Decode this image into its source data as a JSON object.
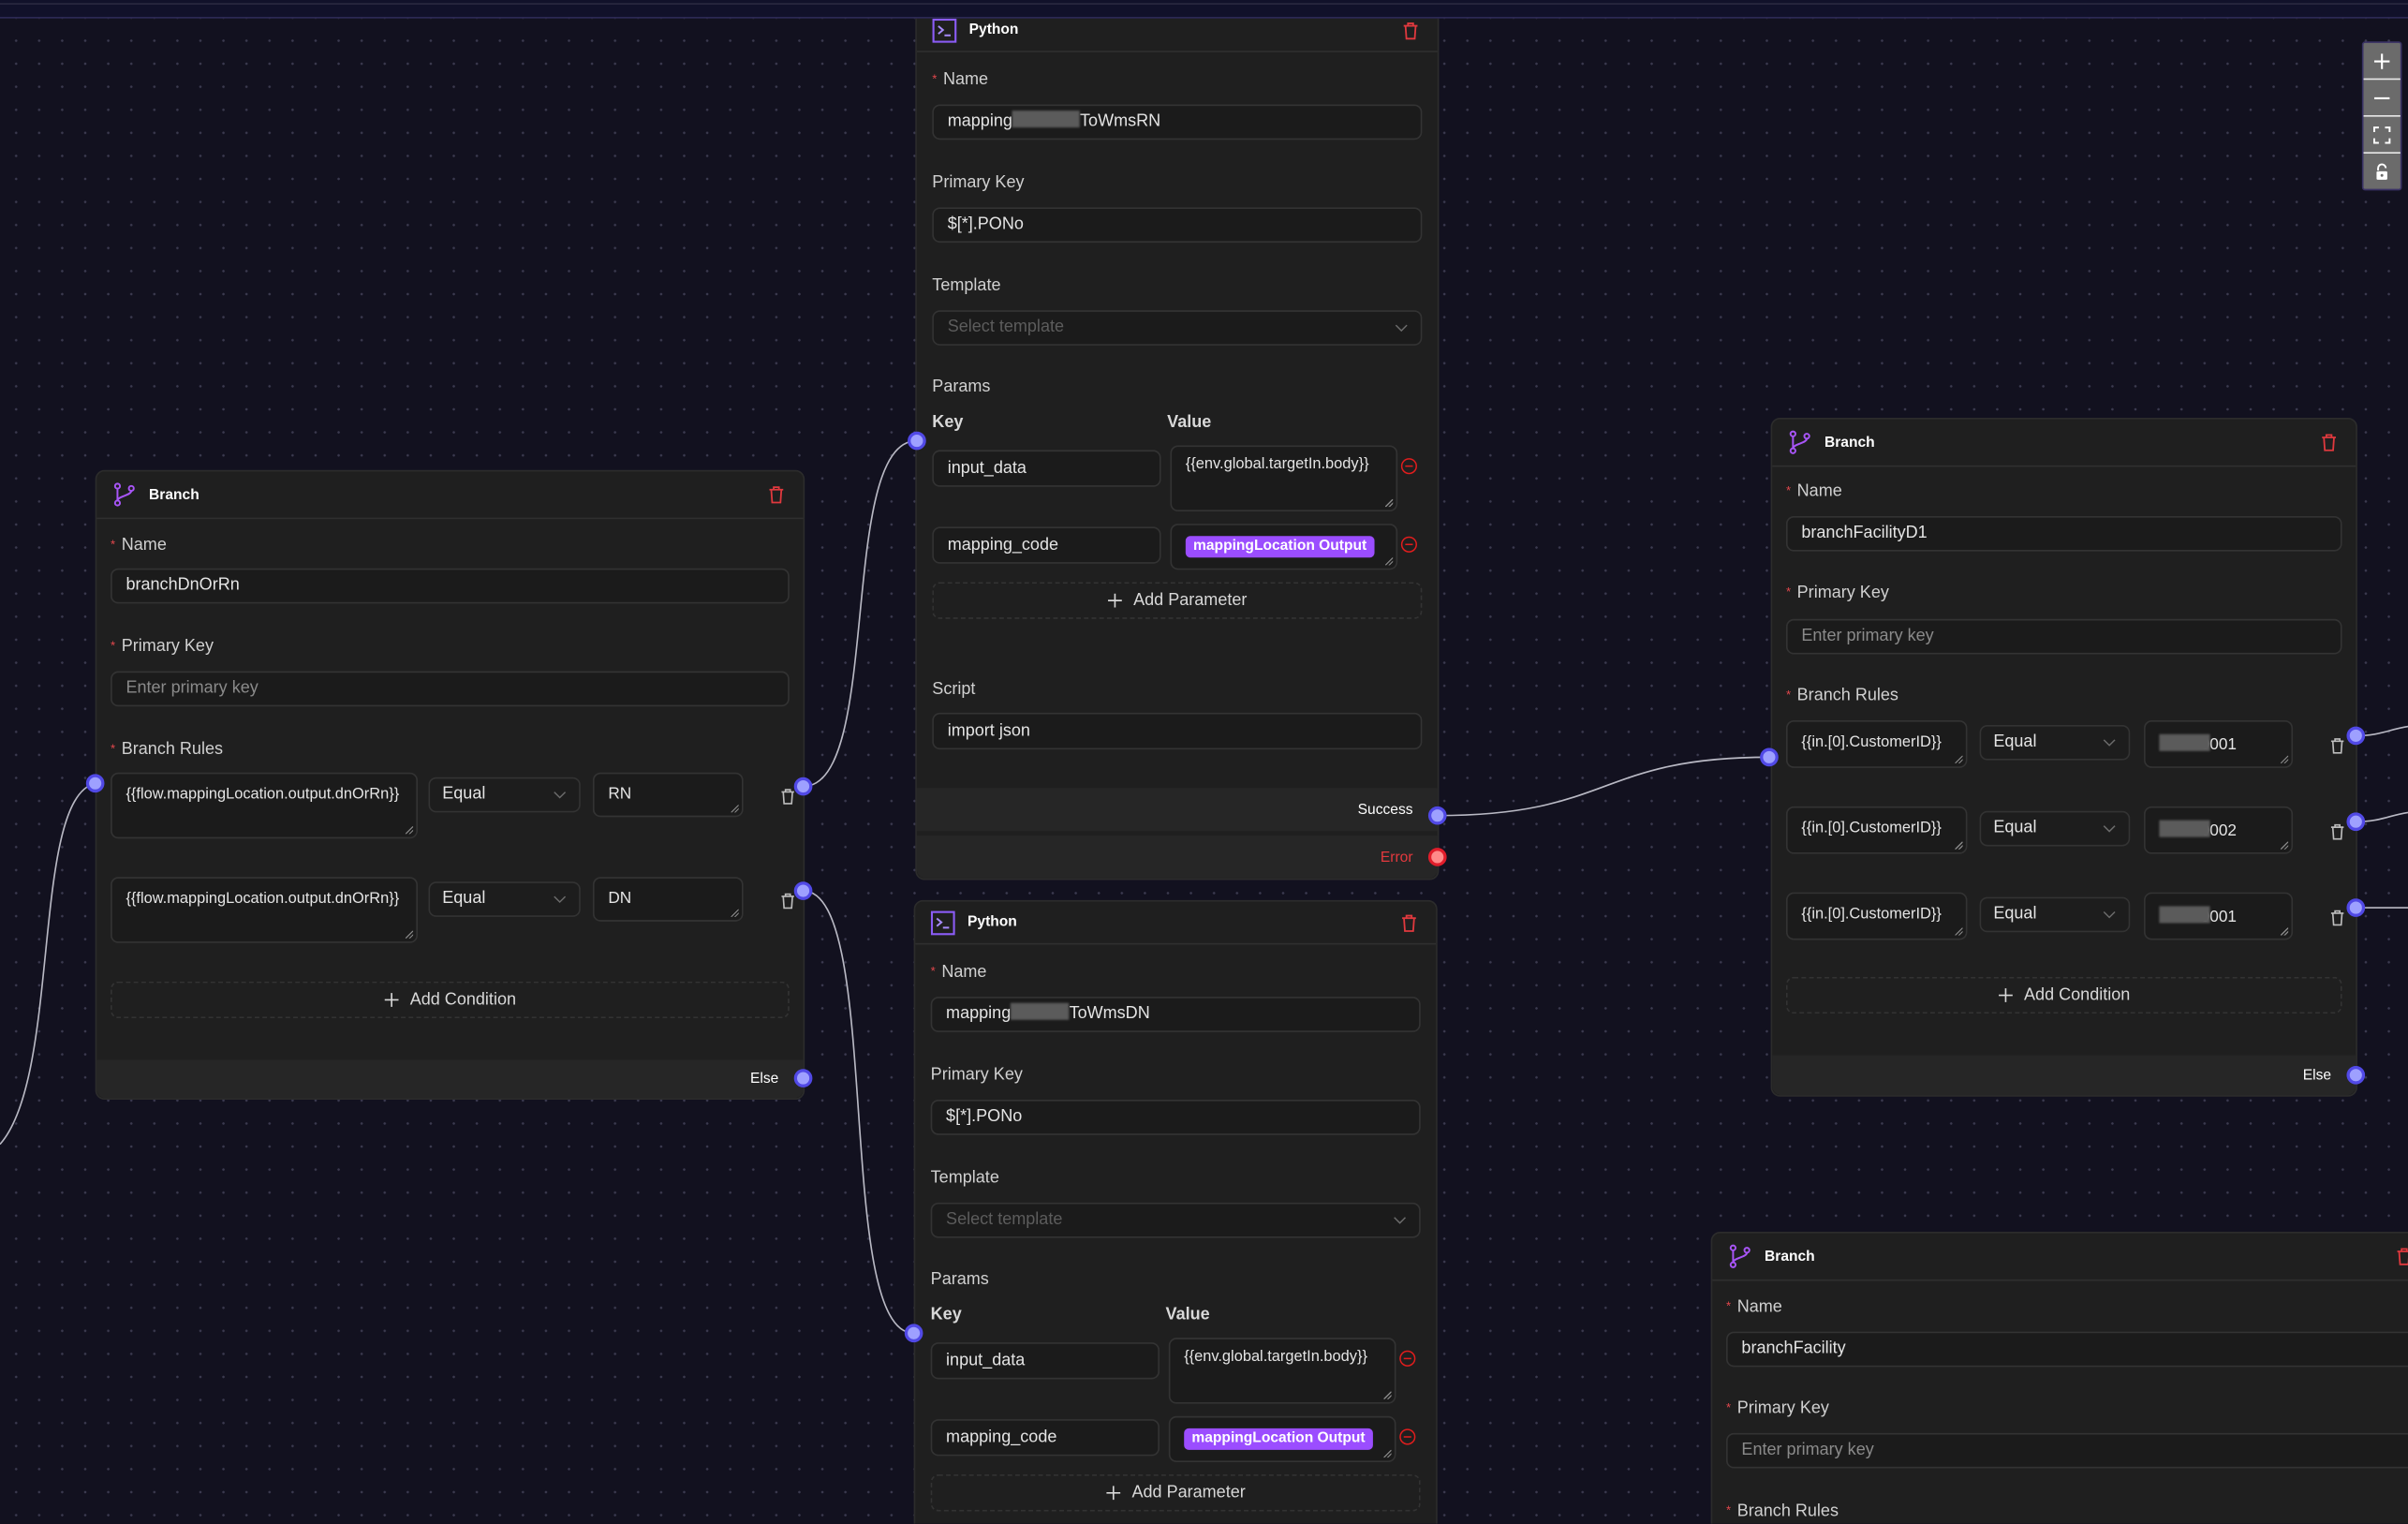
{
  "canvas": {
    "zoom_controls": [
      {
        "action": "zoom-in",
        "icon": "plus-icon"
      },
      {
        "action": "zoom-out",
        "icon": "minus-icon"
      },
      {
        "action": "fit-view",
        "icon": "fit-view-icon"
      },
      {
        "action": "toggle-lock",
        "icon": "unlock-icon"
      }
    ],
    "colors": {
      "background": "#12111f",
      "handle": "#9ea0ff",
      "handle_error": "#ff8a8a",
      "accent": "#9b4dff",
      "danger": "#e5393e"
    }
  },
  "nodes": {
    "python1": {
      "type": "Python",
      "name_label": "Name",
      "name_prefix": "mapping",
      "name_suffix": "ToWmsRN",
      "pk_label": "Primary Key",
      "pk_value": "$[*].PONo",
      "template_label": "Template",
      "template_placeholder": "Select template",
      "params_label": "Params",
      "key_header": "Key",
      "value_header": "Value",
      "params": [
        {
          "key": "input_data",
          "value": "{{env.global.targetIn.body}}"
        },
        {
          "key": "mapping_code",
          "badge": "mappingLocation Output"
        }
      ],
      "add_param": "Add Parameter",
      "script_label": "Script",
      "script_value": "import json",
      "outputs": {
        "success": "Success",
        "error": "Error"
      }
    },
    "python2": {
      "type": "Python",
      "name_label": "Name",
      "name_prefix": "mapping",
      "name_suffix": "ToWmsDN",
      "pk_label": "Primary Key",
      "pk_value": "$[*].PONo",
      "template_label": "Template",
      "template_placeholder": "Select template",
      "params_label": "Params",
      "key_header": "Key",
      "value_header": "Value",
      "params": [
        {
          "key": "input_data",
          "value": "{{env.global.targetIn.body}}"
        },
        {
          "key": "mapping_code",
          "badge": "mappingLocation Output"
        }
      ],
      "add_param": "Add Parameter"
    },
    "branch_left": {
      "type": "Branch",
      "name_label": "Name",
      "name_value": "branchDnOrRn",
      "pk_label": "Primary Key",
      "pk_placeholder": "Enter primary key",
      "rules_label": "Branch Rules",
      "rules": [
        {
          "field": "{{flow.mappingLocation.output.dnOrRn}}",
          "operator": "Equal",
          "value": "RN"
        },
        {
          "field": "{{flow.mappingLocation.output.dnOrRn}}",
          "operator": "Equal",
          "value": "DN"
        }
      ],
      "add_condition": "Add Condition",
      "else_label": "Else"
    },
    "branch_right": {
      "type": "Branch",
      "name_label": "Name",
      "name_value": "branchFacilityD1",
      "pk_label": "Primary Key",
      "pk_placeholder": "Enter primary key",
      "rules_label": "Branch Rules",
      "rules": [
        {
          "field": "{{in.[0].CustomerID}}",
          "operator": "Equal",
          "value": "0001",
          "redacted": true
        },
        {
          "field": "{{in.[0].CustomerID}}",
          "operator": "Equal",
          "value": "0002",
          "redacted": true
        },
        {
          "field": "{{in.[0].CustomerID}}",
          "operator": "Equal",
          "value": "0001",
          "redacted": true
        }
      ],
      "add_condition": "Add Condition",
      "else_label": "Else"
    },
    "branch_bottom": {
      "type": "Branch",
      "name_label": "Name",
      "name_value": "branchFacility",
      "pk_label": "Primary Key",
      "pk_placeholder": "Enter primary key",
      "rules_label": "Branch Rules"
    }
  }
}
